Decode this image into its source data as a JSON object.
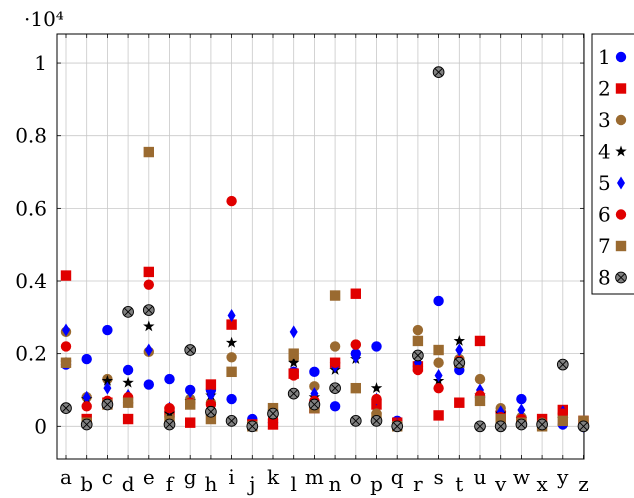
{
  "chart_data": {
    "type": "scatter",
    "multiplier_label": "·10⁴",
    "categories": [
      "a",
      "b",
      "c",
      "d",
      "e",
      "f",
      "g",
      "h",
      "i",
      "j",
      "k",
      "l",
      "m",
      "n",
      "o",
      "p",
      "q",
      "r",
      "s",
      "t",
      "u",
      "v",
      "w",
      "x",
      "y",
      "z"
    ],
    "ylim": [
      -0.09,
      1.08
    ],
    "yticks": [
      0,
      0.2,
      0.4,
      0.6,
      0.8,
      1
    ],
    "ytick_labels": [
      "0",
      "0.2",
      "0.4",
      "0.6",
      "0.8",
      "1"
    ],
    "grid": true,
    "legend_position": "right",
    "series": [
      {
        "name": "1",
        "marker": "circle",
        "color": "#0000ff",
        "values": [
          0.17,
          0.185,
          0.265,
          0.155,
          0.115,
          0.13,
          0.1,
          0.1,
          0.075,
          0.02,
          0.01,
          0.15,
          0.15,
          0.055,
          0.2,
          0.22,
          0.015,
          0.165,
          0.345,
          0.155,
          0.08,
          0.015,
          0.075,
          0.01,
          0.005,
          0.0
        ]
      },
      {
        "name": "2",
        "marker": "square",
        "color": "#e00000",
        "values": [
          0.415,
          0.02,
          0.065,
          0.02,
          0.425,
          0.04,
          0.01,
          0.115,
          0.28,
          0.005,
          0.005,
          0.145,
          0.05,
          0.175,
          0.365,
          0.06,
          0.01,
          0.165,
          0.03,
          0.065,
          0.235,
          0.03,
          0.015,
          0.02,
          0.045,
          0.015
        ]
      },
      {
        "name": "3",
        "marker": "circle",
        "color": "#9a6a30",
        "values": [
          0.26,
          0.08,
          0.13,
          0.065,
          0.205,
          0.025,
          0.075,
          0.065,
          0.19,
          0.005,
          0.035,
          0.185,
          0.11,
          0.22,
          0.225,
          0.035,
          0.005,
          0.265,
          0.175,
          0.185,
          0.13,
          0.05,
          0.025,
          0.01,
          0.03,
          0.015
        ]
      },
      {
        "name": "4",
        "marker": "star",
        "color": "#000000",
        "values": [
          0.175,
          0.075,
          0.125,
          0.12,
          0.275,
          0.035,
          0.07,
          0.085,
          0.23,
          0.005,
          0.04,
          0.175,
          0.08,
          0.155,
          0.185,
          0.105,
          0.005,
          0.19,
          0.125,
          0.235,
          0.085,
          0.035,
          0.02,
          0.005,
          0.02,
          0.0
        ]
      },
      {
        "name": "5",
        "marker": "diamond",
        "color": "#0000ff",
        "values": [
          0.265,
          0.08,
          0.105,
          0.085,
          0.21,
          0.05,
          0.095,
          0.085,
          0.305,
          0.005,
          0.04,
          0.26,
          0.09,
          0.165,
          0.19,
          0.075,
          0.005,
          0.175,
          0.14,
          0.21,
          0.1,
          0.04,
          0.045,
          0.005,
          0.04,
          0.0
        ]
      },
      {
        "name": "6",
        "marker": "circle",
        "color": "#e00000",
        "values": [
          0.22,
          0.055,
          0.07,
          0.08,
          0.39,
          0.05,
          0.065,
          0.06,
          0.62,
          0.005,
          0.02,
          0.14,
          0.07,
          0.175,
          0.225,
          0.075,
          0.005,
          0.155,
          0.105,
          0.18,
          0.085,
          0.025,
          0.02,
          0.005,
          0.035,
          0.0
        ]
      },
      {
        "name": "7",
        "marker": "square",
        "color": "#9a6a30",
        "values": [
          0.175,
          0.01,
          0.06,
          0.065,
          0.755,
          0.015,
          0.06,
          0.02,
          0.15,
          0.0,
          0.05,
          0.2,
          0.05,
          0.36,
          0.105,
          0.025,
          0.0,
          0.235,
          0.21,
          0.175,
          0.07,
          0.02,
          0.01,
          0.0,
          0.015,
          0.015
        ]
      },
      {
        "name": "8",
        "marker": "xcircle",
        "color": "#505050",
        "values": [
          0.05,
          0.005,
          0.06,
          0.315,
          0.32,
          0.005,
          0.21,
          0.04,
          0.015,
          0.0,
          0.035,
          0.09,
          0.06,
          0.105,
          0.015,
          0.015,
          0.0,
          0.195,
          0.975,
          0.175,
          0.0,
          0.0,
          0.005,
          0.005,
          0.17,
          0.0
        ]
      }
    ]
  }
}
